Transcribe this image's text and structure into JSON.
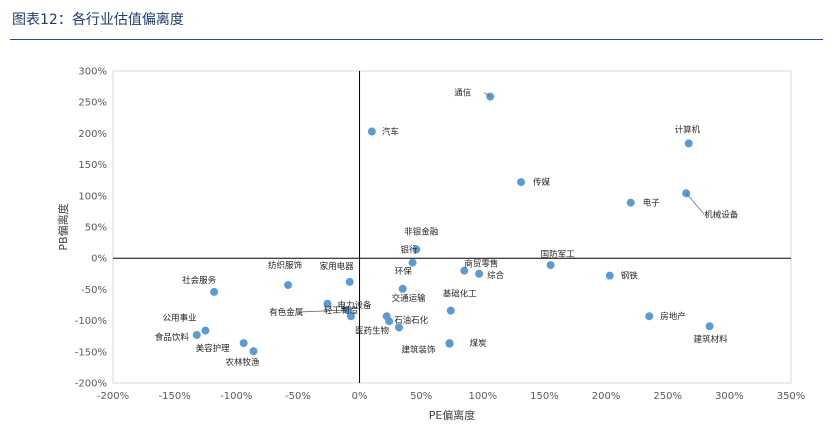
{
  "figure": {
    "title": "图表12：各行业估值偏离度"
  },
  "chart_data": {
    "type": "scatter",
    "title": "",
    "xlabel": "PE偏离度",
    "ylabel": "PB偏离度",
    "xlim": [
      -200,
      350
    ],
    "ylim": [
      -200,
      300
    ],
    "x_ticks": [
      -200,
      -150,
      -100,
      -50,
      0,
      50,
      100,
      150,
      200,
      250,
      300,
      350
    ],
    "y_ticks": [
      -200,
      -150,
      -100,
      -50,
      0,
      50,
      100,
      150,
      200,
      250,
      300
    ],
    "tick_suffix": "%",
    "grid": false,
    "marker_color": "#5b9bd5",
    "axis_color": "#000000",
    "frame_color": "#d9d9d9",
    "points": [
      {
        "label": "通信",
        "x": 106,
        "y": 259
      },
      {
        "label": "汽车",
        "x": 10,
        "y": 203
      },
      {
        "label": "计算机",
        "x": 267,
        "y": 184
      },
      {
        "label": "传媒",
        "x": 131,
        "y": 122
      },
      {
        "label": "机械设备",
        "x": 265,
        "y": 104
      },
      {
        "label": "电子",
        "x": 220,
        "y": 89
      },
      {
        "label": "非银金融",
        "x": 46,
        "y": 14
      },
      {
        "label": "银行",
        "x": 43,
        "y": -7
      },
      {
        "label": "国防军工",
        "x": 155,
        "y": -11
      },
      {
        "label": "商贸零售",
        "x": 85,
        "y": -20
      },
      {
        "label": "综合",
        "x": 97,
        "y": -25
      },
      {
        "label": "钢铁",
        "x": 203,
        "y": -28
      },
      {
        "label": "家用电器",
        "x": -8,
        "y": -38
      },
      {
        "label": "纺织服饰",
        "x": -58,
        "y": -43
      },
      {
        "label": "环保",
        "x": 35,
        "y": -49
      },
      {
        "label": "社会服务",
        "x": -118,
        "y": -54
      },
      {
        "label": "电力设备",
        "x": -26,
        "y": -73
      },
      {
        "label": "有色金属",
        "x": -10,
        "y": -83
      },
      {
        "label": "基础化工",
        "x": 74,
        "y": -84
      },
      {
        "label": "交通运输",
        "x": 22,
        "y": -93
      },
      {
        "label": "轻工制造",
        "x": -7,
        "y": -93
      },
      {
        "label": "房地产",
        "x": 235,
        "y": -93
      },
      {
        "label": "石油石化",
        "x": 24,
        "y": -101
      },
      {
        "label": "医药生物",
        "x": 32,
        "y": -111
      },
      {
        "label": "建筑材料",
        "x": 284,
        "y": -109
      },
      {
        "label": "公用事业",
        "x": -125,
        "y": -116
      },
      {
        "label": "食品饮料",
        "x": -132,
        "y": -123
      },
      {
        "label": "美容护理",
        "x": -94,
        "y": -136
      },
      {
        "label": "建筑装饰",
        "x": 73,
        "y": -137
      },
      {
        "label": "煤炭",
        "x": 73,
        "y": -136
      },
      {
        "label": "农林牧渔",
        "x": -86,
        "y": -149
      }
    ]
  }
}
